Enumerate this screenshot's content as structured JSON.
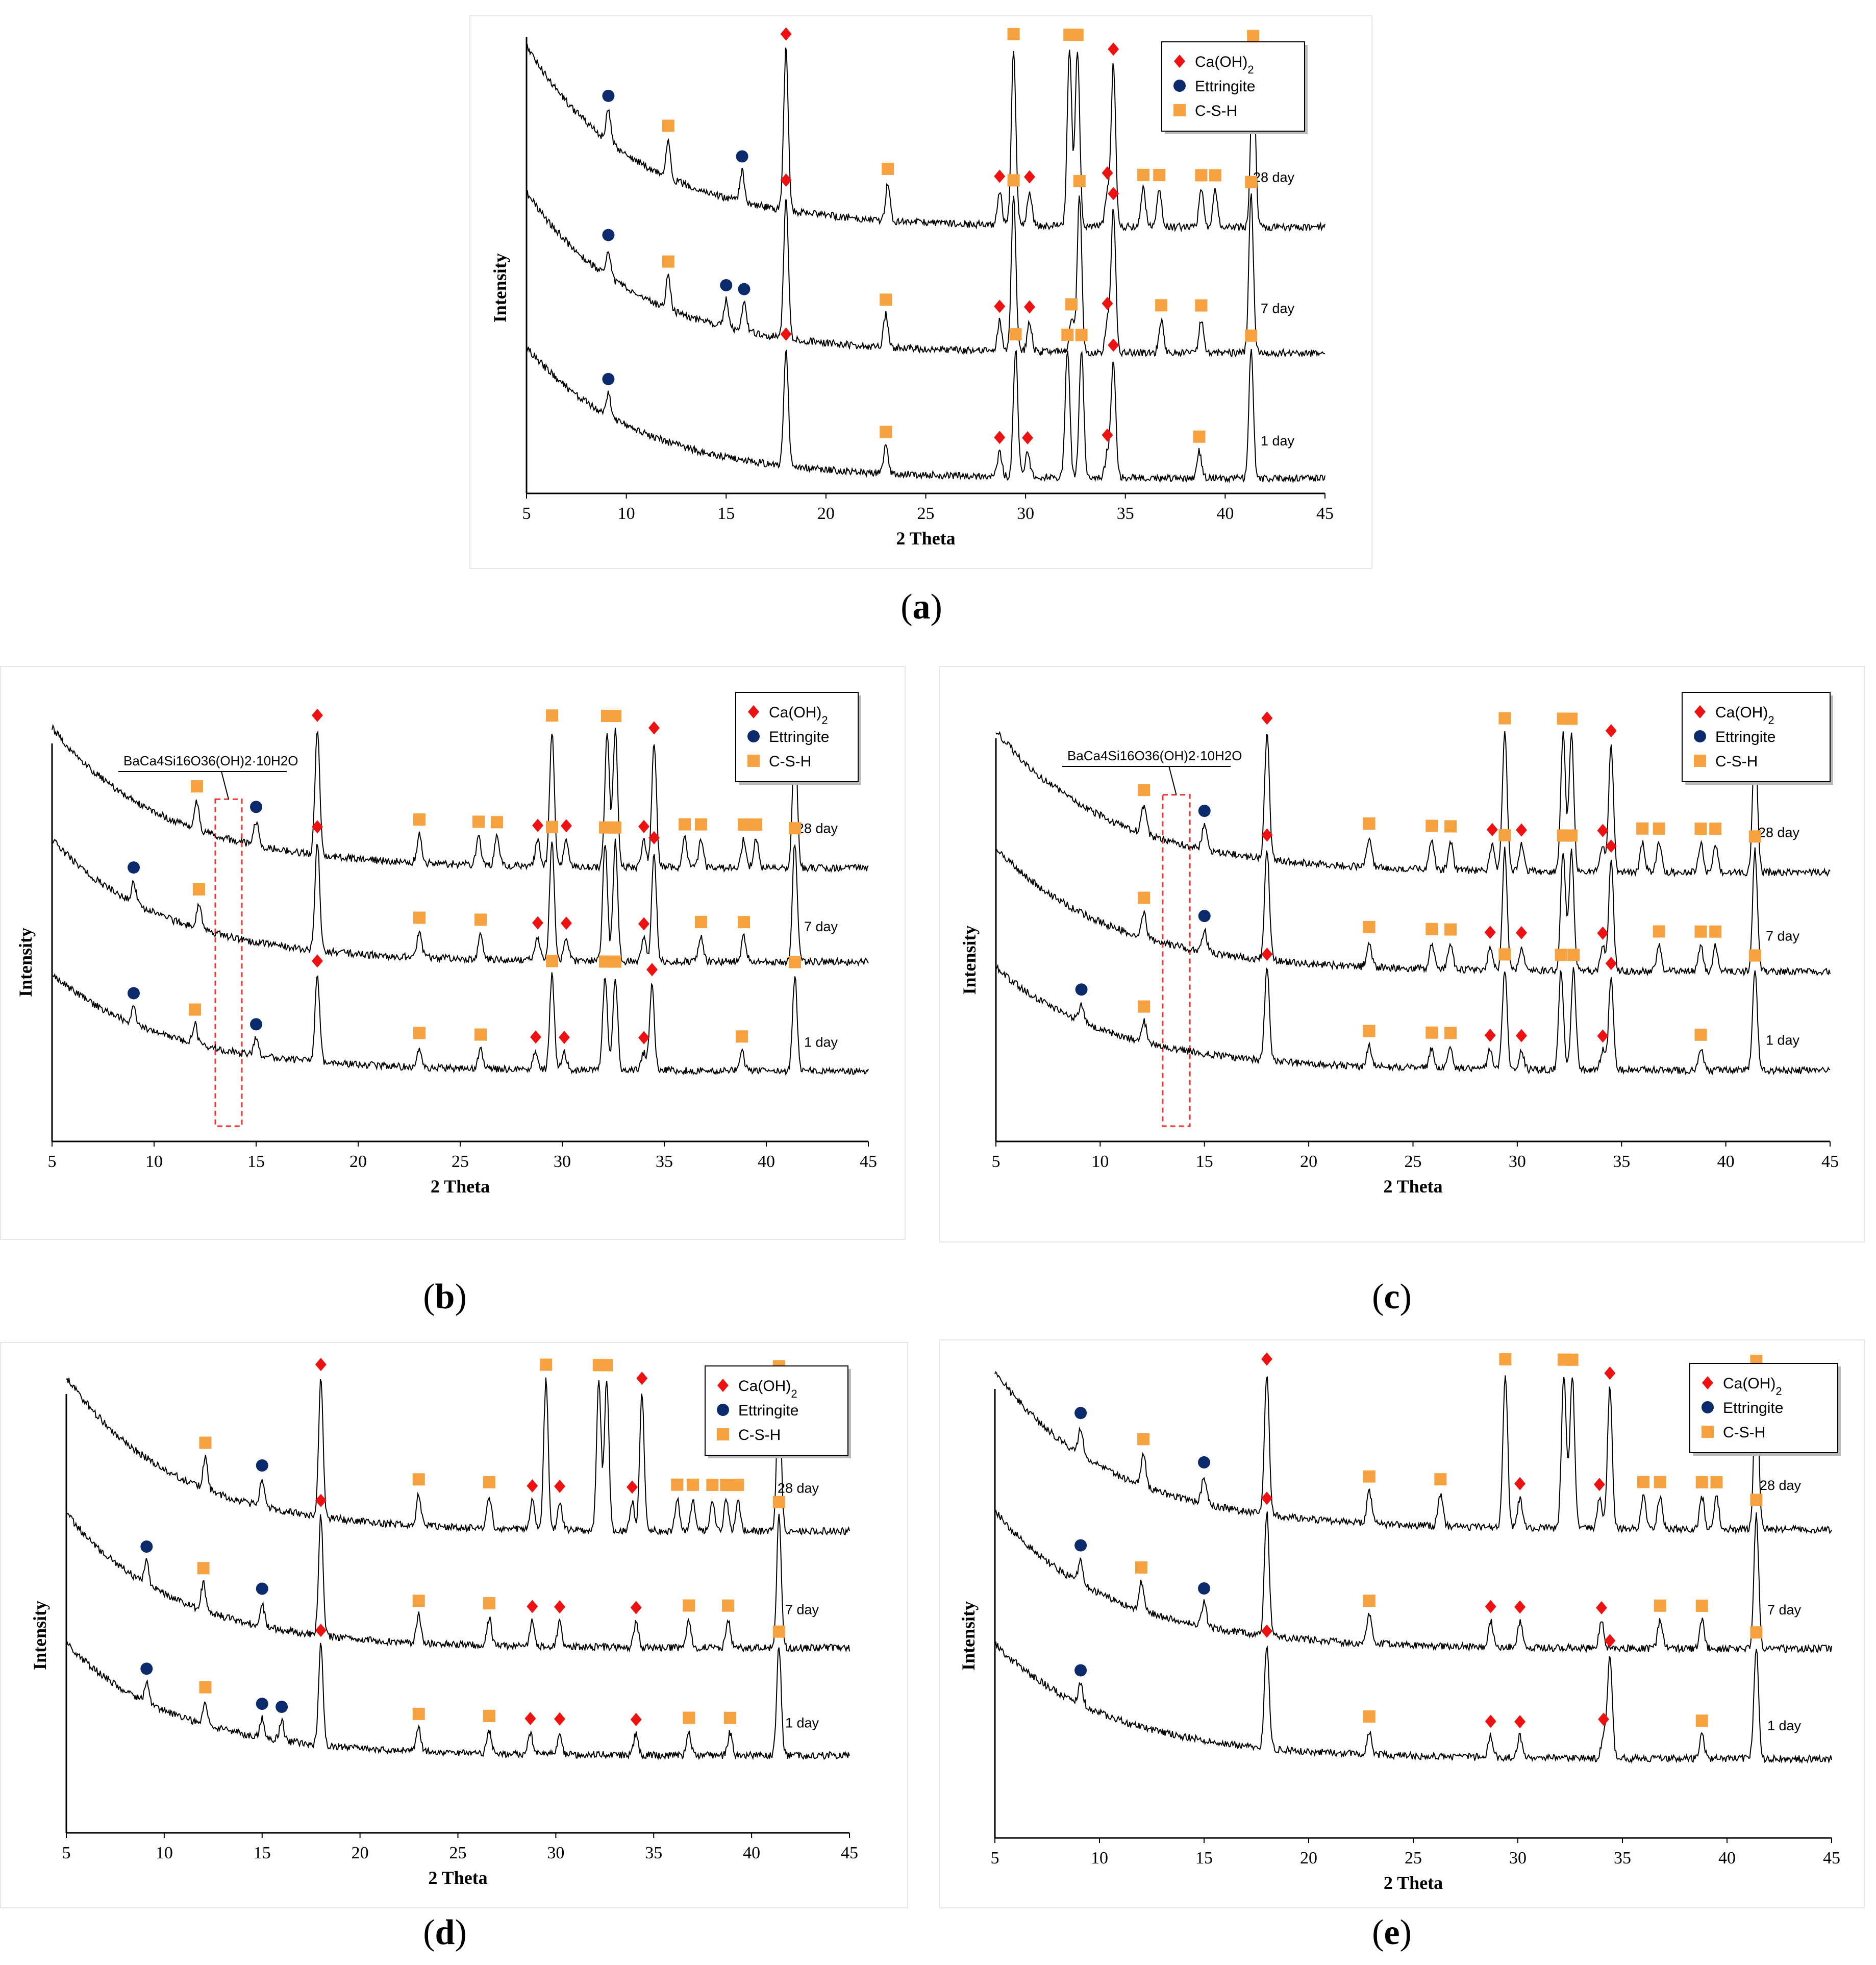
{
  "figure": {
    "captions": [
      {
        "letter": "a"
      },
      {
        "letter": "b"
      },
      {
        "letter": "c"
      },
      {
        "letter": "d"
      },
      {
        "letter": "e"
      }
    ]
  },
  "colors": {
    "caoh2": "#ee1111",
    "ettringite": "#0b2a6b",
    "csh": "#f7a240",
    "trace": "#000000",
    "annotation_box": "#ee3333"
  },
  "legend": {
    "items": [
      {
        "label": "Ca(OH)",
        "subscript": "2",
        "marker": "diamond",
        "phase": "caoh2"
      },
      {
        "label": "Ettringite",
        "marker": "circle",
        "phase": "ettringite"
      },
      {
        "label": "C-S-H",
        "marker": "square",
        "phase": "csh"
      }
    ]
  },
  "chart_data": [
    {
      "id": "a",
      "type": "line",
      "xlabel": "2 Theta",
      "ylabel": "Intensity",
      "xlim": [
        5,
        45
      ],
      "xticks": [
        5,
        10,
        15,
        20,
        25,
        30,
        35,
        40,
        45
      ],
      "annotation": null,
      "series": [
        {
          "name": "28 day",
          "peaks": {
            "caoh2": [
              18,
              28.7,
              30.2,
              34.1,
              34.4
            ],
            "ettringite": [
              9.1,
              15.8
            ],
            "csh": [
              12.1,
              23.1,
              29.4,
              32.2,
              32.6,
              35.9,
              36.7,
              38.8,
              39.5,
              41.4
            ]
          }
        },
        {
          "name": "7 day",
          "peaks": {
            "caoh2": [
              18,
              28.7,
              30.2,
              34.1,
              34.4
            ],
            "ettringite": [
              9.1,
              15,
              15.9
            ],
            "csh": [
              12.1,
              23.0,
              29.4,
              32.3,
              32.7,
              36.8,
              38.8,
              41.3
            ]
          }
        },
        {
          "name": "1 day",
          "peaks": {
            "caoh2": [
              18,
              28.7,
              30.1,
              34.1,
              34.4
            ],
            "ettringite": [
              9.1
            ],
            "csh": [
              23.0,
              29.5,
              32.1,
              32.8,
              38.7,
              41.3
            ]
          }
        }
      ]
    },
    {
      "id": "b",
      "type": "line",
      "xlabel": "2 Theta",
      "ylabel": "Intensity",
      "xlim": [
        5,
        45
      ],
      "xticks": [
        5,
        10,
        15,
        20,
        25,
        30,
        35,
        40,
        45
      ],
      "annotation": {
        "text": "BaCa4Si16O36(OH)2·10H2O",
        "x_range": [
          13,
          14.3
        ]
      },
      "series": [
        {
          "name": "28 day",
          "peaks": {
            "caoh2": [
              18,
              28.8,
              30.2,
              34.0,
              34.5
            ],
            "ettringite": [
              15
            ],
            "csh": [
              12.1,
              23.0,
              25.9,
              26.8,
              29.5,
              32.2,
              32.6,
              36.0,
              36.8,
              38.9,
              39.5,
              41.4
            ]
          }
        },
        {
          "name": "7 day",
          "peaks": {
            "caoh2": [
              18,
              28.8,
              30.2,
              34.0,
              34.5
            ],
            "ettringite": [
              9
            ],
            "csh": [
              12.2,
              23.0,
              26.0,
              29.5,
              32.1,
              32.6,
              36.8,
              38.9,
              41.4
            ]
          }
        },
        {
          "name": "1 day",
          "peaks": {
            "caoh2": [
              18,
              28.7,
              30.1,
              34.0,
              34.4
            ],
            "ettringite": [
              9,
              15
            ],
            "csh": [
              12.0,
              23.0,
              26.0,
              29.5,
              32.1,
              32.6,
              38.8,
              41.4
            ]
          }
        }
      ]
    },
    {
      "id": "c",
      "type": "line",
      "xlabel": "2 Theta",
      "ylabel": "Intensity",
      "xlim": [
        5,
        45
      ],
      "xticks": [
        5,
        10,
        15,
        20,
        25,
        30,
        35,
        40,
        45
      ],
      "annotation": {
        "text": "BaCa4Si16O36(OH)2·10H2O",
        "x_range": [
          13,
          14.3
        ]
      },
      "series": [
        {
          "name": "28 day",
          "peaks": {
            "caoh2": [
              18,
              28.8,
              30.2,
              34.1,
              34.5
            ],
            "ettringite": [
              15
            ],
            "csh": [
              12.1,
              22.9,
              25.9,
              26.8,
              29.4,
              32.2,
              32.6,
              36.0,
              36.8,
              38.8,
              39.5,
              41.4
            ]
          }
        },
        {
          "name": "7 day",
          "peaks": {
            "caoh2": [
              18,
              28.7,
              30.2,
              34.1,
              34.5
            ],
            "ettringite": [
              15
            ],
            "csh": [
              12.1,
              22.9,
              25.9,
              26.8,
              29.4,
              32.2,
              32.6,
              36.8,
              38.8,
              39.5,
              41.4
            ]
          }
        },
        {
          "name": "1 day",
          "peaks": {
            "caoh2": [
              18,
              28.7,
              30.2,
              34.1,
              34.5
            ],
            "ettringite": [
              9.1
            ],
            "csh": [
              12.1,
              22.9,
              25.9,
              26.8,
              29.4,
              32.1,
              32.7,
              38.8,
              41.4
            ]
          }
        }
      ]
    },
    {
      "id": "d",
      "type": "line",
      "xlabel": "2 Theta",
      "ylabel": "Intensity",
      "xlim": [
        5,
        45
      ],
      "xticks": [
        5,
        10,
        15,
        20,
        25,
        30,
        35,
        40,
        45
      ],
      "annotation": null,
      "series": [
        {
          "name": "28 day",
          "peaks": {
            "caoh2": [
              18,
              28.8,
              30.2,
              33.9,
              34.4
            ],
            "ettringite": [
              15
            ],
            "csh": [
              12.1,
              23.0,
              26.6,
              29.5,
              32.2,
              32.6,
              36.2,
              37.0,
              38.0,
              38.7,
              39.3,
              41.4
            ]
          }
        },
        {
          "name": "7 day",
          "peaks": {
            "caoh2": [
              18,
              28.8,
              30.2,
              34.1
            ],
            "ettringite": [
              9.1,
              15
            ],
            "csh": [
              12.0,
              23.0,
              26.6,
              36.8,
              38.8,
              41.4
            ]
          }
        },
        {
          "name": "1 day",
          "peaks": {
            "caoh2": [
              18,
              28.7,
              30.2,
              34.1
            ],
            "ettringite": [
              9.1,
              15,
              16
            ],
            "csh": [
              12.1,
              23.0,
              26.6,
              36.8,
              38.9,
              41.4
            ]
          }
        }
      ]
    },
    {
      "id": "e",
      "type": "line",
      "xlabel": "2 Theta",
      "ylabel": "Intensity",
      "xlim": [
        5,
        45
      ],
      "xticks": [
        5,
        10,
        15,
        20,
        25,
        30,
        35,
        40,
        45
      ],
      "annotation": null,
      "series": [
        {
          "name": "28 day",
          "peaks": {
            "caoh2": [
              18,
              30.1,
              33.9,
              34.4
            ],
            "ettringite": [
              9.1,
              15
            ],
            "csh": [
              12.1,
              22.9,
              26.3,
              29.4,
              32.2,
              32.6,
              36.0,
              36.8,
              38.8,
              39.5,
              41.4
            ]
          }
        },
        {
          "name": "7 day",
          "peaks": {
            "caoh2": [
              18,
              28.7,
              30.1,
              34.0
            ],
            "ettringite": [
              9.1,
              15
            ],
            "csh": [
              12.0,
              22.9,
              36.8,
              38.8,
              41.4
            ]
          }
        },
        {
          "name": "1 day",
          "peaks": {
            "caoh2": [
              18,
              28.7,
              30.1,
              34.1,
              34.4
            ],
            "ettringite": [
              9.1
            ],
            "csh": [
              22.9,
              38.8,
              41.4
            ]
          }
        }
      ]
    }
  ]
}
